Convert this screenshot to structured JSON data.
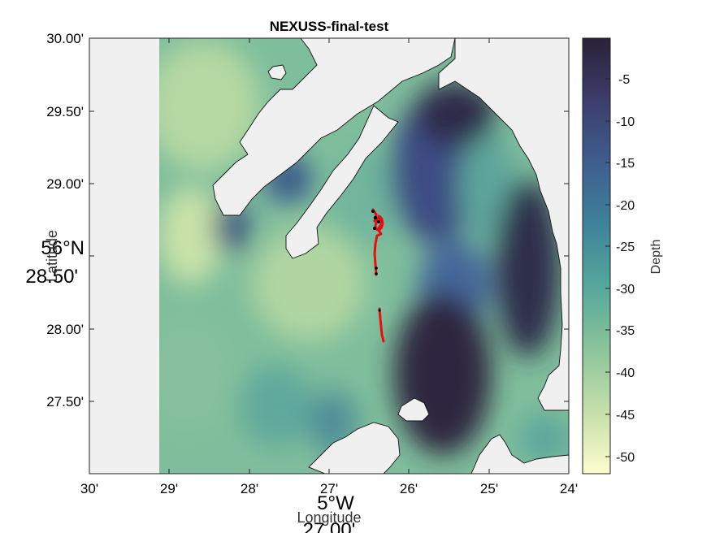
{
  "figure": {
    "title": "NEXUSS-final-test",
    "xlabel": "Longitude",
    "ylabel": "Latitude",
    "x_ticks": [
      "30'",
      "29'",
      "28'",
      "27'",
      "26'",
      "25'",
      "24'"
    ],
    "x_tick_values": [
      -5.5,
      -5.4833,
      -5.4667,
      -5.45,
      -5.4333,
      -5.4167,
      -5.4
    ],
    "y_ticks": [
      "30.00'",
      "29.50'",
      "29.00'",
      "28.50'",
      "28.00'",
      "27.50'"
    ],
    "y_tick_values": [
      56.5,
      56.4917,
      56.4833,
      56.475,
      56.4667,
      56.4583
    ],
    "x_degree_label": "5°W",
    "x_overlap_label": "27.00'",
    "y_degree_label": "56°N",
    "y_overlap_label": "28.50'"
  },
  "colorbar": {
    "label": "Depth",
    "ticks": [
      "-5",
      "-10",
      "-15",
      "-20",
      "-25",
      "-30",
      "-35",
      "-40",
      "-45",
      "-50"
    ],
    "tick_values": [
      -5,
      -10,
      -15,
      -20,
      -25,
      -30,
      -35,
      -40,
      -45,
      -50
    ],
    "range": [
      -52,
      0
    ],
    "colormap": [
      "#2b2137",
      "#3c3d6b",
      "#3f5f8f",
      "#3f8399",
      "#55a79b",
      "#8ac39b",
      "#c6dfa9",
      "#fdfdce"
    ]
  },
  "colors": {
    "land": "#f0f0f0",
    "track": "#e8100f",
    "waypoints": "#000000"
  }
}
